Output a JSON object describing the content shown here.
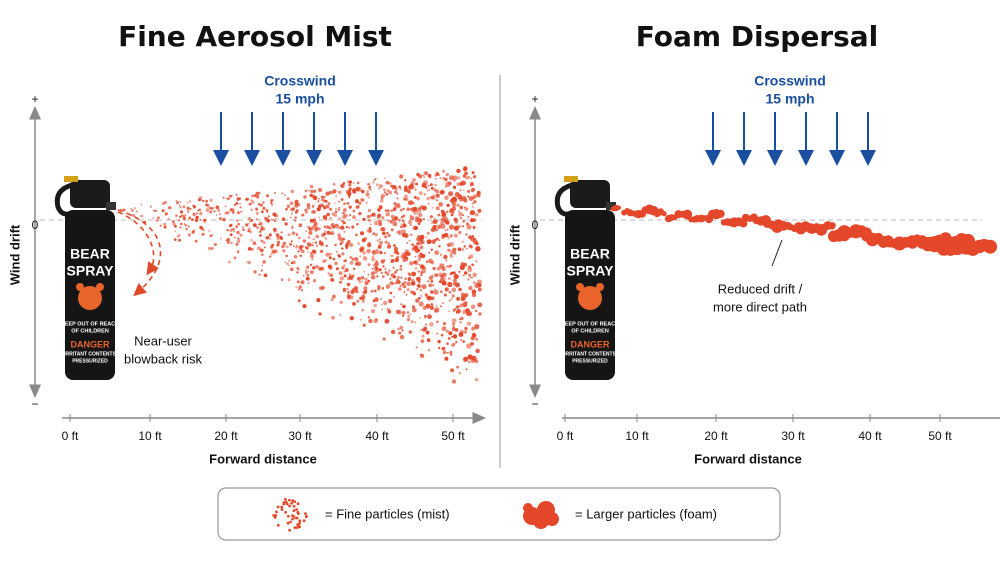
{
  "panels": [
    {
      "title": "Fine Aerosol Mist",
      "crosswind": [
        "Crosswind",
        "15 mph"
      ],
      "y_axis": {
        "label": "Wind drift",
        "ticks": [
          "+",
          "0",
          "−"
        ]
      },
      "x_axis": {
        "label": "Forward distance",
        "ticks": [
          "0 ft",
          "10 ft",
          "20 ft",
          "30 ft",
          "40 ft",
          "50 ft"
        ]
      },
      "annotation": [
        "Near-user",
        "blowback risk"
      ]
    },
    {
      "title": "Foam Dispersal",
      "crosswind": [
        "Crosswind",
        "15 mph"
      ],
      "y_axis": {
        "label": "Wind drift",
        "ticks": [
          "+",
          "0",
          "−"
        ]
      },
      "x_axis": {
        "label": "Forward distance",
        "ticks": [
          "0 ft",
          "10 ft",
          "20 ft",
          "30 ft",
          "40 ft",
          "50 ft"
        ]
      },
      "annotation": [
        "Reduced drift /",
        "more direct path"
      ]
    }
  ],
  "can": {
    "lines": [
      "BEAR",
      "SPRAY",
      "KEEP OUT OF REACH",
      "OF CHILDREN",
      "DANGER",
      "IRRITANT CONTENTS",
      "PRESSURIZED"
    ]
  },
  "legend": [
    {
      "label": "= Fine particles (mist)"
    },
    {
      "label": "= Larger particles (foam)"
    }
  ]
}
